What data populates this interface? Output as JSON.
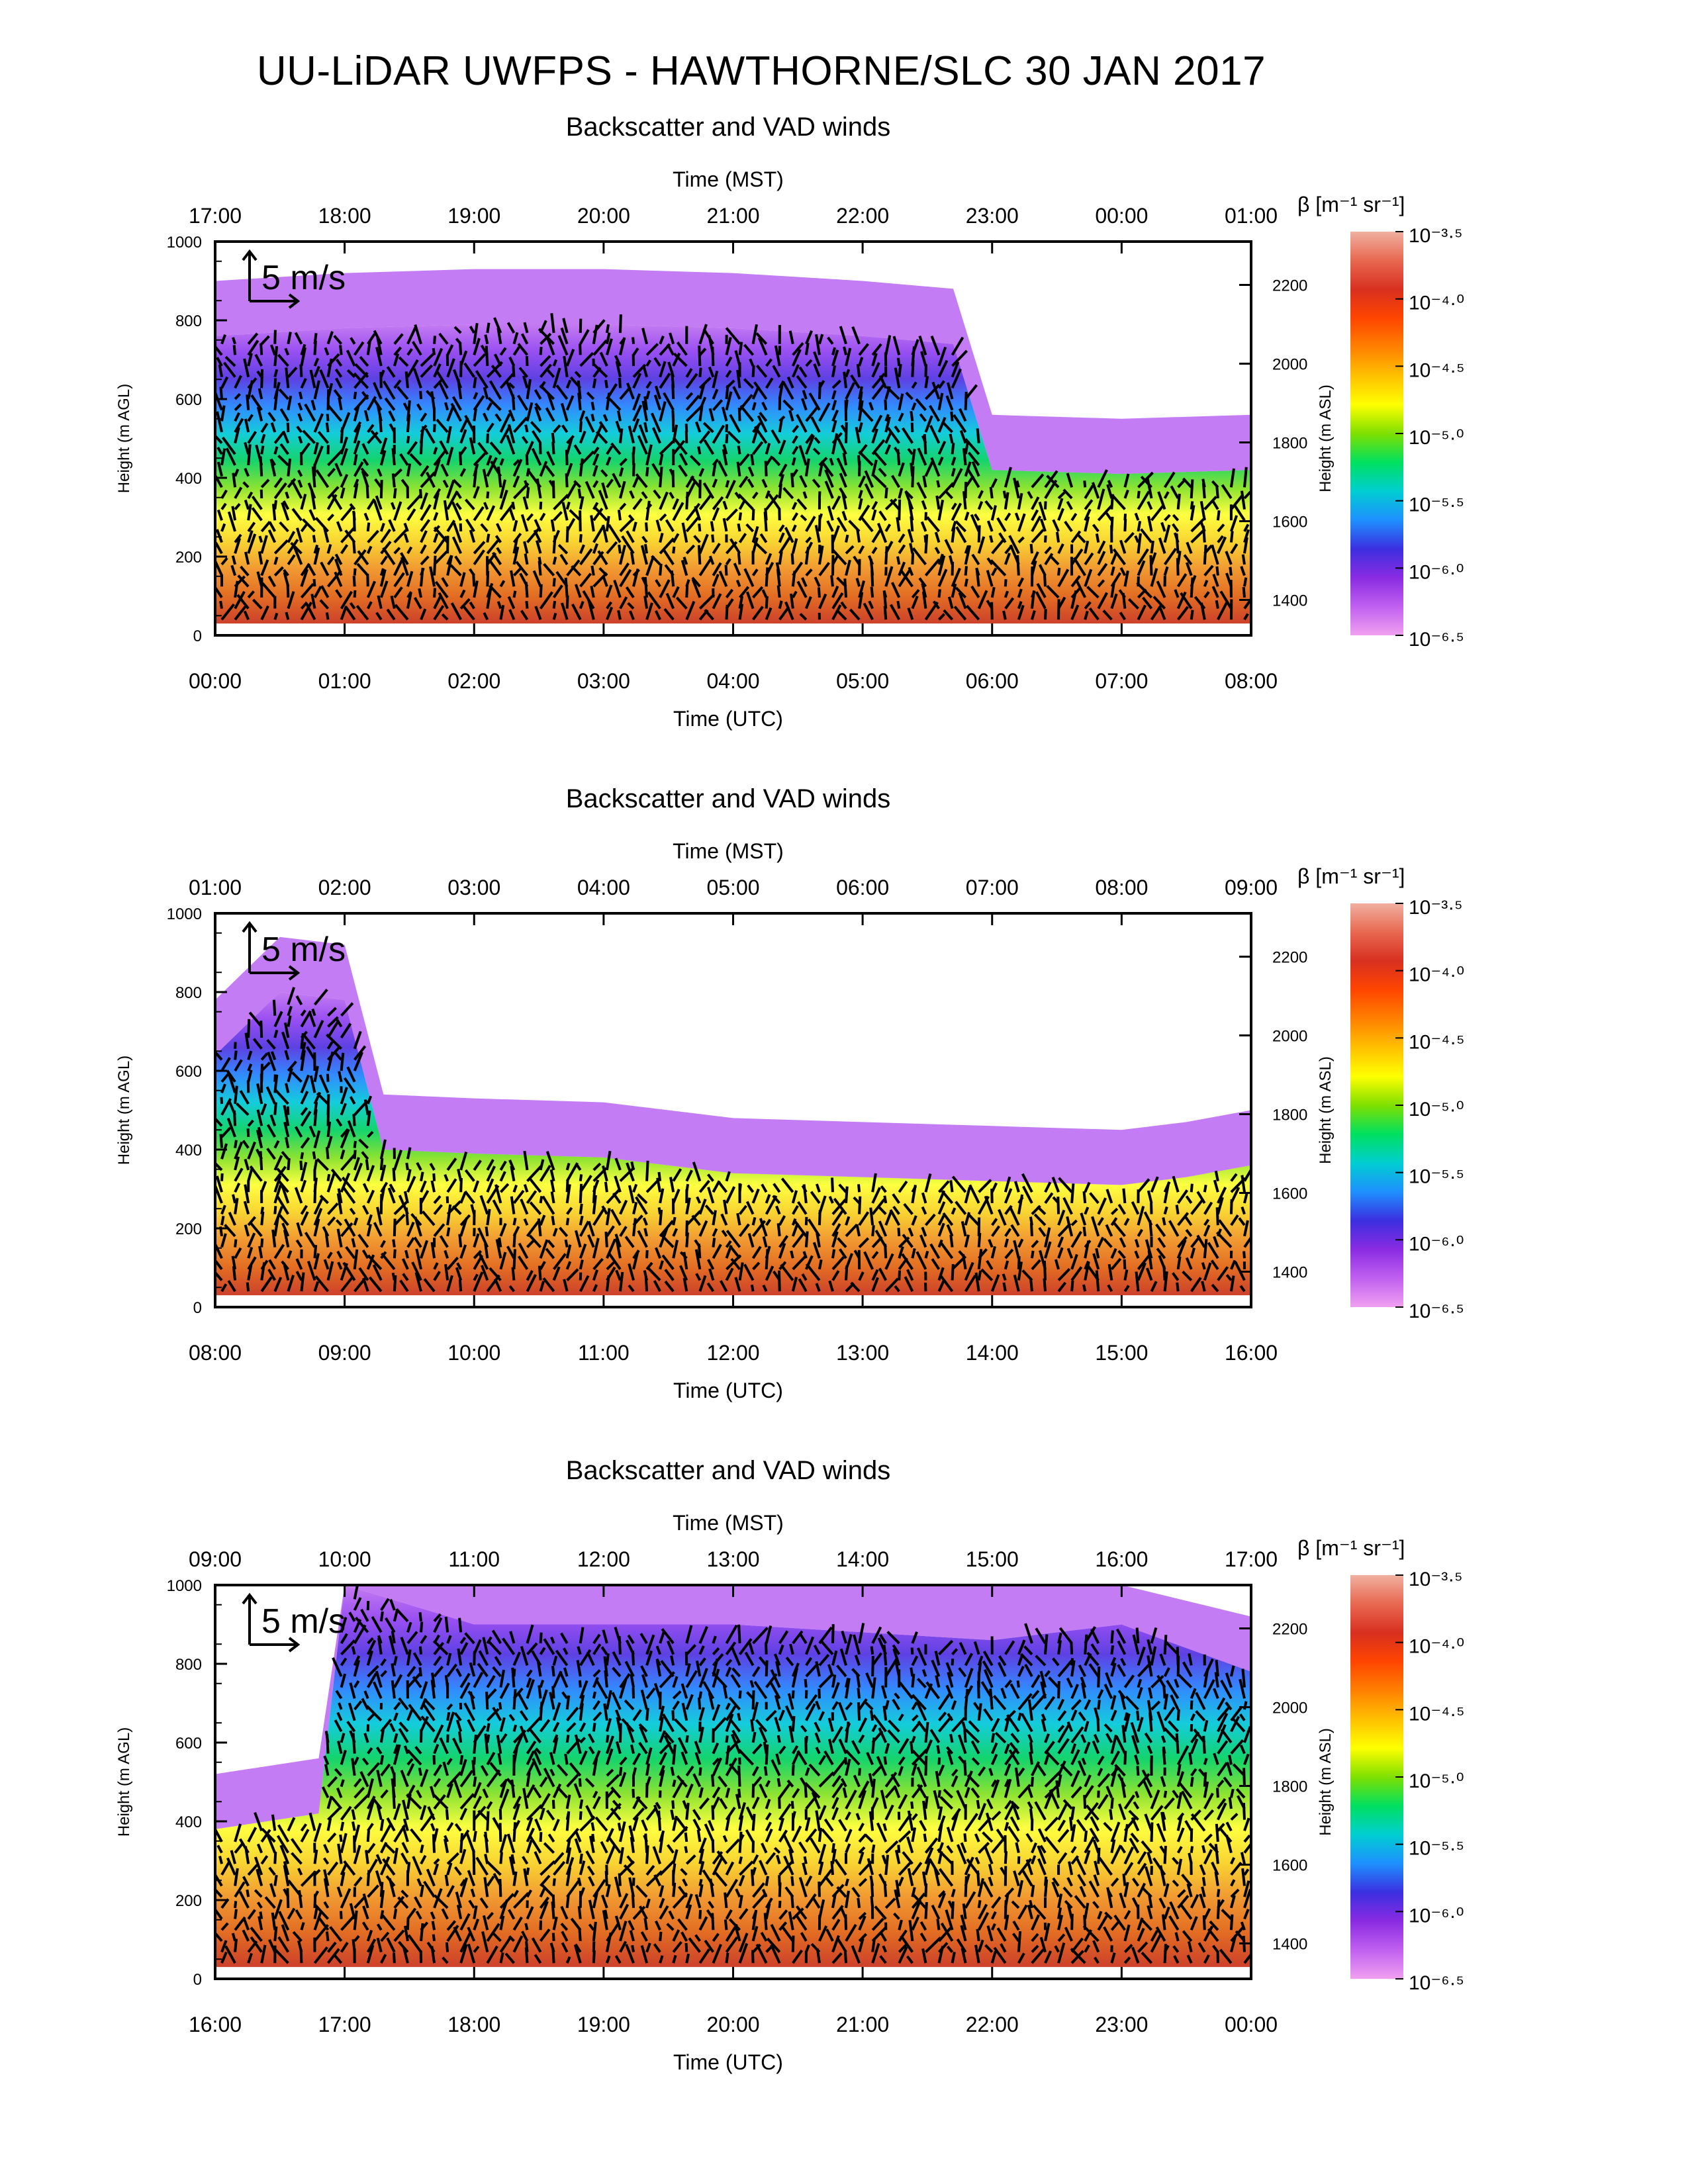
{
  "title": "UU-LiDAR UWFPS - HAWTHORNE/SLC 30 JAN 2017",
  "colors": {
    "colorbar_stops": [
      "#f0a0f0",
      "#c060f0",
      "#8a2be2",
      "#3b2fe0",
      "#1e90ff",
      "#00ced1",
      "#00e060",
      "#7fe000",
      "#ffff00",
      "#ffc000",
      "#ff8000",
      "#ff4500",
      "#d83020",
      "#e86850",
      "#f0b0a0"
    ]
  },
  "chart_data": [
    {
      "type": "heatmap",
      "title": "Backscatter and VAD winds",
      "xlabel_top": "Time (MST)",
      "xticks_top": [
        "17:00",
        "18:00",
        "19:00",
        "20:00",
        "21:00",
        "22:00",
        "23:00",
        "00:00",
        "01:00"
      ],
      "xlabel_bottom": "Time (UTC)",
      "xticks_bottom": [
        "00:00",
        "01:00",
        "02:00",
        "03:00",
        "04:00",
        "05:00",
        "06:00",
        "07:00",
        "08:00"
      ],
      "ylabel_left": "Height (m AGL)",
      "yticks_left": [
        "0",
        "200",
        "400",
        "600",
        "800",
        "1000"
      ],
      "ylim": [
        0,
        1000
      ],
      "ylabel_right": "Height (m ASL)",
      "yticks_right": [
        "1400",
        "1600",
        "1800",
        "2000",
        "2200"
      ],
      "vector_key": "5 m/s",
      "colorbar": {
        "label": "β [m⁻¹ sr⁻¹]",
        "ticks": [
          "10⁻³·⁵",
          "10⁻⁴·⁰",
          "10⁻⁴·⁵",
          "10⁻⁵·⁰",
          "10⁻⁵·⁵",
          "10⁻⁶·⁰",
          "10⁻⁶·⁵"
        ],
        "range_log10": [
          -6.5,
          -3.5
        ]
      },
      "aerosol_layer_top_m_agl": [
        {
          "x": 0.0,
          "y": 760
        },
        {
          "x": 1.0,
          "y": 780
        },
        {
          "x": 2.0,
          "y": 790
        },
        {
          "x": 3.0,
          "y": 790
        },
        {
          "x": 4.0,
          "y": 780
        },
        {
          "x": 5.0,
          "y": 760
        },
        {
          "x": 5.7,
          "y": 740
        },
        {
          "x": 6.0,
          "y": 420
        },
        {
          "x": 7.0,
          "y": 410
        },
        {
          "x": 8.0,
          "y": 420
        }
      ]
    },
    {
      "type": "heatmap",
      "title": "Backscatter and VAD winds",
      "xlabel_top": "Time (MST)",
      "xticks_top": [
        "01:00",
        "02:00",
        "03:00",
        "04:00",
        "05:00",
        "06:00",
        "07:00",
        "08:00",
        "09:00"
      ],
      "xlabel_bottom": "Time (UTC)",
      "xticks_bottom": [
        "08:00",
        "09:00",
        "10:00",
        "11:00",
        "12:00",
        "13:00",
        "14:00",
        "15:00",
        "16:00"
      ],
      "ylabel_left": "Height (m AGL)",
      "yticks_left": [
        "0",
        "200",
        "400",
        "600",
        "800",
        "1000"
      ],
      "ylim": [
        0,
        1000
      ],
      "ylabel_right": "Height (m ASL)",
      "yticks_right": [
        "1400",
        "1600",
        "1800",
        "2000",
        "2200"
      ],
      "vector_key": "5 m/s",
      "colorbar": {
        "label": "β [m⁻¹ sr⁻¹]",
        "ticks": [
          "10⁻³·⁵",
          "10⁻⁴·⁰",
          "10⁻⁴·⁵",
          "10⁻⁵·⁰",
          "10⁻⁵·⁵",
          "10⁻⁶·⁰",
          "10⁻⁶·⁵"
        ],
        "range_log10": [
          -6.5,
          -3.5
        ]
      },
      "aerosol_layer_top_m_agl": [
        {
          "x": 8.0,
          "y": 640
        },
        {
          "x": 8.5,
          "y": 800
        },
        {
          "x": 9.0,
          "y": 780
        },
        {
          "x": 9.3,
          "y": 400
        },
        {
          "x": 10.0,
          "y": 390
        },
        {
          "x": 11.0,
          "y": 380
        },
        {
          "x": 12.0,
          "y": 340
        },
        {
          "x": 13.0,
          "y": 330
        },
        {
          "x": 14.0,
          "y": 320
        },
        {
          "x": 15.0,
          "y": 310
        },
        {
          "x": 15.5,
          "y": 330
        },
        {
          "x": 16.0,
          "y": 360
        }
      ]
    },
    {
      "type": "heatmap",
      "title": "Backscatter and VAD winds",
      "xlabel_top": "Time (MST)",
      "xticks_top": [
        "09:00",
        "10:00",
        "11:00",
        "12:00",
        "13:00",
        "14:00",
        "15:00",
        "16:00",
        "17:00"
      ],
      "xlabel_bottom": "Time (UTC)",
      "xticks_bottom": [
        "16:00",
        "17:00",
        "18:00",
        "19:00",
        "20:00",
        "21:00",
        "22:00",
        "23:00",
        "00:00"
      ],
      "ylabel_left": "Height (m AGL)",
      "yticks_left": [
        "0",
        "200",
        "400",
        "600",
        "800",
        "1000"
      ],
      "ylim": [
        0,
        1000
      ],
      "ylabel_right": "Height (m ASL)",
      "yticks_right": [
        "1400",
        "1600",
        "1800",
        "2000",
        "2200"
      ],
      "vector_key": "5 m/s",
      "colorbar": {
        "label": "β [m⁻¹ sr⁻¹]",
        "ticks": [
          "10⁻³·⁵",
          "10⁻⁴·⁰",
          "10⁻⁴·⁵",
          "10⁻⁵·⁰",
          "10⁻⁵·⁵",
          "10⁻⁶·⁰",
          "10⁻⁶·⁵"
        ],
        "range_log10": [
          -6.5,
          -3.5
        ]
      },
      "aerosol_layer_top_m_agl": [
        {
          "x": 16.0,
          "y": 380
        },
        {
          "x": 16.8,
          "y": 420
        },
        {
          "x": 17.0,
          "y": 1000
        },
        {
          "x": 18.0,
          "y": 900
        },
        {
          "x": 20.0,
          "y": 900
        },
        {
          "x": 22.0,
          "y": 860
        },
        {
          "x": 23.0,
          "y": 900
        },
        {
          "x": 24.0,
          "y": 780
        }
      ]
    }
  ]
}
